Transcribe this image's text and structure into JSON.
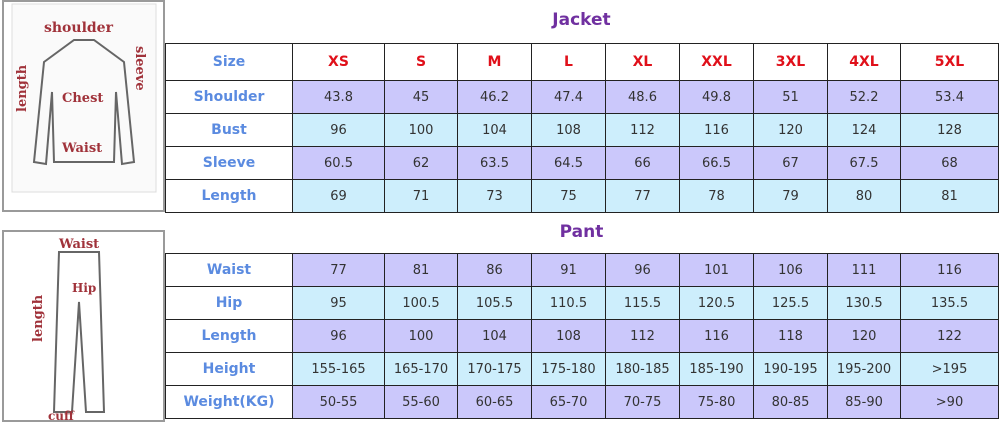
{
  "jacket": {
    "title": "Jacket",
    "image_labels": [
      "shoulder",
      "length",
      "sleeve",
      "Chest",
      "Waist"
    ],
    "header": [
      "Size",
      "XS",
      "S",
      "M",
      "L",
      "XL",
      "XXL",
      "3XL",
      "4XL",
      "5XL"
    ],
    "rows": [
      {
        "label": "Shoulder",
        "values": [
          "43.8",
          "45",
          "46.2",
          "47.4",
          "48.6",
          "49.8",
          "51",
          "52.2",
          "53.4"
        ]
      },
      {
        "label": "Bust",
        "values": [
          "96",
          "100",
          "104",
          "108",
          "112",
          "116",
          "120",
          "124",
          "128"
        ]
      },
      {
        "label": "Sleeve",
        "values": [
          "60.5",
          "62",
          "63.5",
          "64.5",
          "66",
          "66.5",
          "67",
          "67.5",
          "68"
        ]
      },
      {
        "label": "Length",
        "values": [
          "69",
          "71",
          "73",
          "75",
          "77",
          "78",
          "79",
          "80",
          "81"
        ]
      }
    ]
  },
  "pant": {
    "title": "Pant",
    "image_labels": [
      "Waist",
      "length",
      "Hip",
      "cuff"
    ],
    "rows": [
      {
        "label": "Waist",
        "values": [
          "77",
          "81",
          "86",
          "91",
          "96",
          "101",
          "106",
          "111",
          "116"
        ]
      },
      {
        "label": "Hip",
        "values": [
          "95",
          "100.5",
          "105.5",
          "110.5",
          "115.5",
          "120.5",
          "125.5",
          "130.5",
          "135.5"
        ]
      },
      {
        "label": "Length",
        "values": [
          "96",
          "100",
          "104",
          "108",
          "112",
          "116",
          "118",
          "120",
          "122"
        ]
      },
      {
        "label": "Height",
        "values": [
          "155-165",
          "165-170",
          "170-175",
          "175-180",
          "180-185",
          "185-190",
          "190-195",
          "195-200",
          ">195"
        ]
      },
      {
        "label": "Weight(KG)",
        "values": [
          "50-55",
          "55-60",
          "60-65",
          "65-70",
          "70-75",
          "75-80",
          "80-85",
          "85-90",
          ">90"
        ]
      }
    ]
  },
  "colors": {
    "title": "#7030a0",
    "size_header": "#e0101a",
    "row_label": "#5b8be0",
    "row_lavender": "#cbc8fb",
    "row_blue": "#cdeefc"
  }
}
